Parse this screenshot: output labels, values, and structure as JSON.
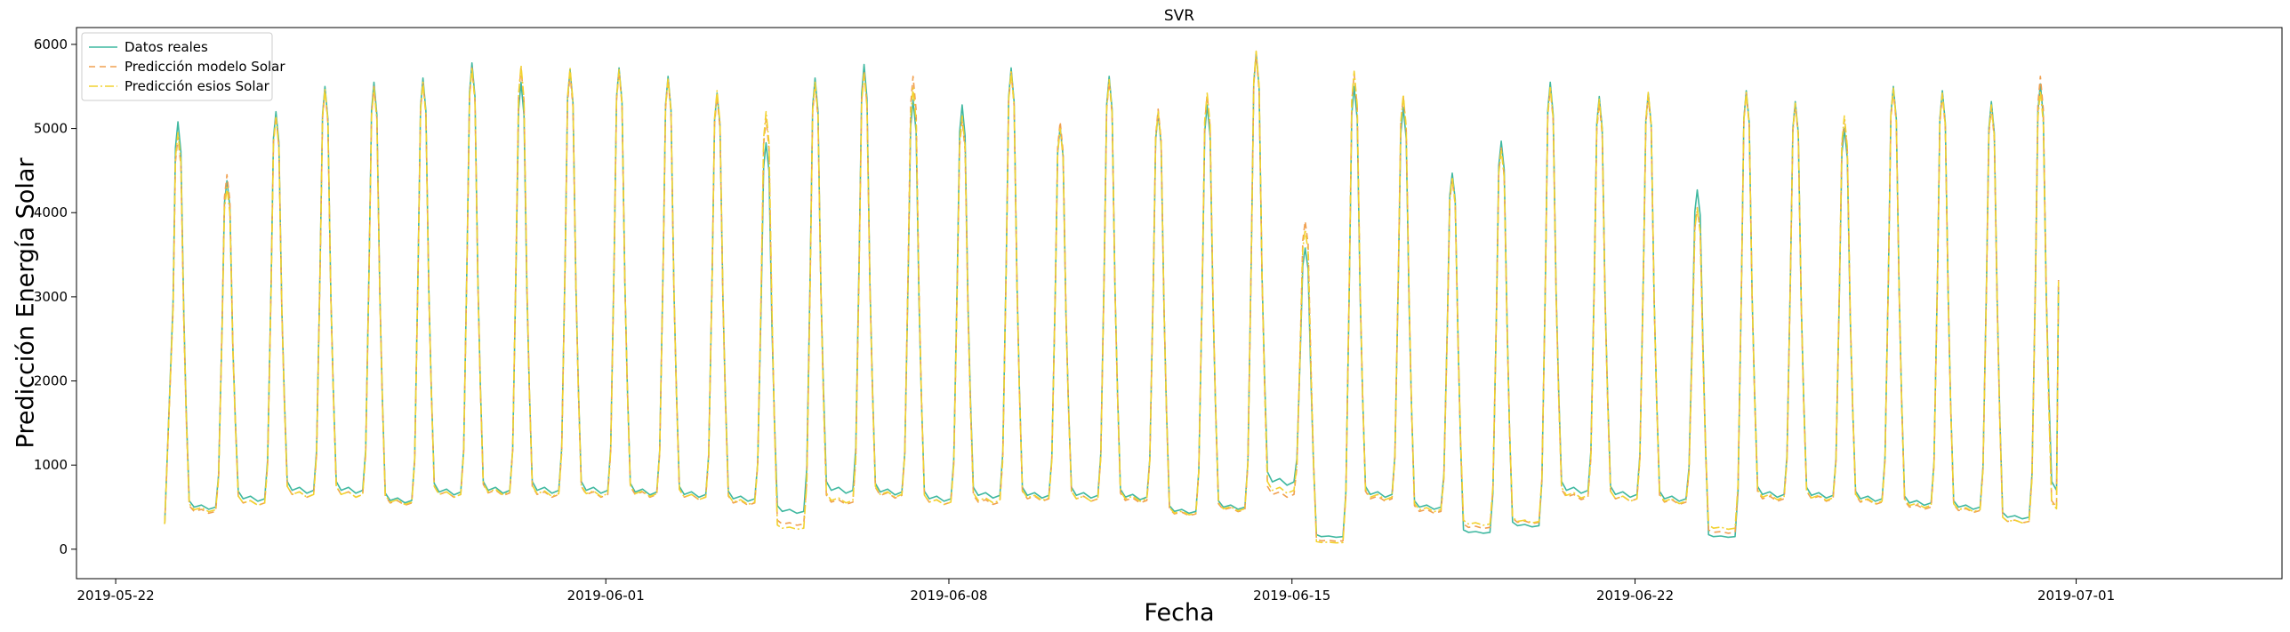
{
  "chart_data": {
    "type": "line",
    "title": "SVR",
    "xlabel": "Fecha",
    "ylabel": "Predicción Energía Solar",
    "x_start": "2019-05-23",
    "x_ticks": [
      {
        "day": -1,
        "label": "2019-05-22"
      },
      {
        "day": 9,
        "label": "2019-06-01"
      },
      {
        "day": 16,
        "label": "2019-06-08"
      },
      {
        "day": 23,
        "label": "2019-06-15"
      },
      {
        "day": 30,
        "label": "2019-06-22"
      },
      {
        "day": 39,
        "label": "2019-07-01"
      }
    ],
    "xlim": [
      -1.8,
      43.2
    ],
    "ylim": [
      -350,
      6200
    ],
    "y_ticks": [
      0,
      1000,
      2000,
      3000,
      4000,
      5000,
      6000
    ],
    "legend_position": "upper-left",
    "series": [
      {
        "name": "Datos reales",
        "color": "#3fb8a0",
        "dash": "solid",
        "peaks": [
          5080,
          4380,
          5200,
          5500,
          5550,
          5600,
          5780,
          5550,
          5700,
          5720,
          5620,
          5420,
          4830,
          5600,
          5760,
          5340,
          5280,
          5720,
          5020,
          5620,
          5180,
          5280,
          5900,
          3580,
          5500,
          5250,
          4470,
          4850,
          5550,
          5380,
          5420,
          4270,
          5450,
          5320,
          5000,
          5500,
          5450,
          5320,
          5530
        ],
        "nights": [
          500,
          600,
          700,
          700,
          580,
          680,
          700,
          700,
          700,
          680,
          650,
          600,
          450,
          700,
          680,
          600,
          640,
          640,
          640,
          620,
          450,
          500,
          800,
          150,
          650,
          500,
          200,
          280,
          700,
          650,
          600,
          150,
          650,
          640,
          600,
          550,
          500,
          380,
          700
        ],
        "last_value": 3130
      },
      {
        "name": "Predicción modelo Solar",
        "color": "#f0a050",
        "dash": "7,5",
        "peaks": [
          4900,
          4450,
          5150,
          5450,
          5500,
          5550,
          5720,
          5720,
          5650,
          5680,
          5580,
          5380,
          5120,
          5520,
          5680,
          5620,
          5100,
          5670,
          5080,
          5560,
          5230,
          5400,
          5870,
          3900,
          5650,
          5380,
          4400,
          4770,
          5480,
          5300,
          5380,
          4060,
          5420,
          5280,
          5100,
          5450,
          5400,
          5250,
          5620
        ],
        "nights": [
          450,
          550,
          650,
          650,
          550,
          650,
          670,
          650,
          650,
          650,
          620,
          550,
          300,
          560,
          640,
          560,
          560,
          600,
          600,
          580,
          420,
          470,
          650,
          100,
          600,
          450,
          260,
          320,
          620,
          600,
          560,
          200,
          600,
          600,
          560,
          500,
          460,
          330,
          500
        ],
        "last_value": 3200
      },
      {
        "name": "Predicción esios Solar",
        "color": "#f2d230",
        "dash": "10,3,2,3",
        "peaks": [
          4950,
          4300,
          5130,
          5470,
          5480,
          5550,
          5720,
          5750,
          5720,
          5700,
          5600,
          5450,
          5200,
          5550,
          5650,
          5480,
          5150,
          5680,
          5000,
          5580,
          5200,
          5420,
          5920,
          3800,
          5680,
          5400,
          4420,
          4750,
          5500,
          5350,
          5430,
          4050,
          5430,
          5300,
          5150,
          5480,
          5420,
          5280,
          5450
        ],
        "nights": [
          470,
          550,
          650,
          650,
          560,
          650,
          680,
          660,
          660,
          660,
          620,
          560,
          250,
          580,
          650,
          560,
          580,
          610,
          600,
          600,
          430,
          480,
          700,
          80,
          620,
          470,
          300,
          330,
          640,
          600,
          570,
          250,
          620,
          610,
          570,
          520,
          470,
          330,
          480
        ],
        "last_value": 3180
      }
    ]
  }
}
